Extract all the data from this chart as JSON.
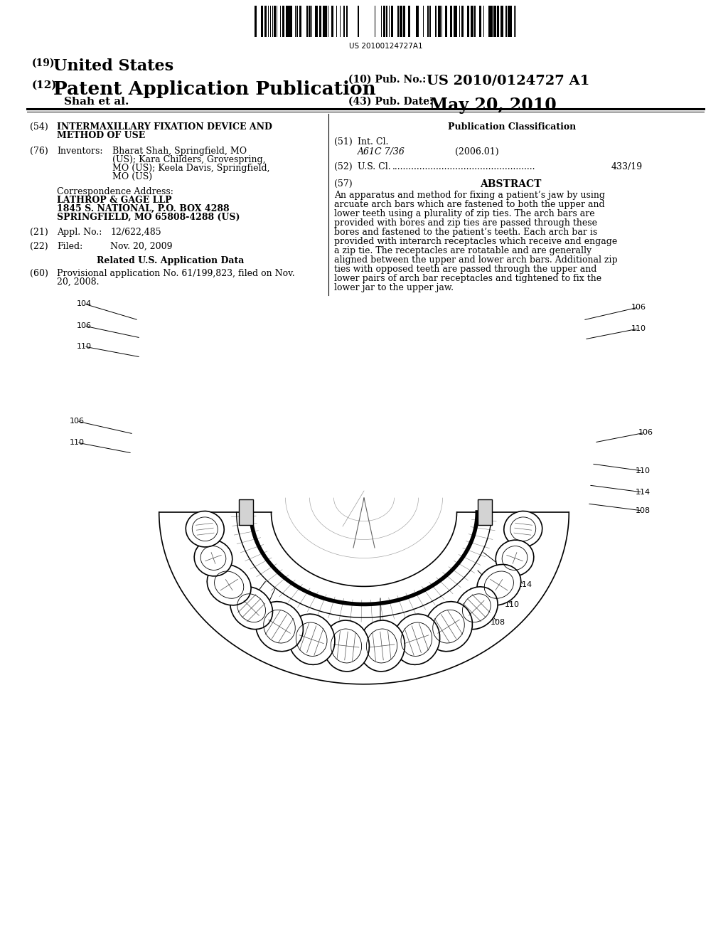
{
  "bg_color": "#ffffff",
  "barcode_text": "US 20100124727A1",
  "pub_no_label": "(10) Pub. No.:",
  "pub_no_value": "US 2010/0124727 A1",
  "author": "Shah et al.",
  "pub_date_label": "(43) Pub. Date:",
  "pub_date_value": "May 20, 2010",
  "field_54_line1": "INTERMAXILLARY FIXATION DEVICE AND",
  "field_54_line2": "METHOD OF USE",
  "field_76_line1": "Bharat Shah, Springfield, MO",
  "field_76_line2": "(US); Kara Childers, Grovespring,",
  "field_76_line3": "MO (US); Keela Davis, Springfield,",
  "field_76_line4": "MO (US)",
  "corr_label": "Correspondence Address:",
  "corr_line1": "LATHROP & GAGE LLP",
  "corr_line2": "1845 S. NATIONAL, P.O. BOX 4288",
  "corr_line3": "SPRINGFIELD, MO 65808-4288 (US)",
  "field_21_value": "12/622,485",
  "field_22_value": "Nov. 20, 2009",
  "related_title": "Related U.S. Application Data",
  "field_60_line1": "Provisional application No. 61/199,823, filed on Nov.",
  "field_60_line2": "20, 2008.",
  "pub_class_title": "Publication Classification",
  "field_51_class": "A61C 7/36",
  "field_51_year": "(2006.01)",
  "field_52_value": "433/19",
  "field_57_title": "ABSTRACT",
  "abstract_lines": [
    "An apparatus and method for fixing a patient’s jaw by using",
    "arcuate arch bars which are fastened to both the upper and",
    "lower teeth using a plurality of zip ties. The arch bars are",
    "provided with bores and zip ties are passed through these",
    "bores and fastened to the patient’s teeth. Each arch bar is",
    "provided with interarch receptacles which receive and engage",
    "a zip tie. The receptacles are rotatable and are generally",
    "aligned between the upper and lower arch bars. Additional zip",
    "ties with opposed teeth are passed through the upper and",
    "lower pairs of arch bar receptacles and tightened to fix the",
    "lower jar to the upper jaw."
  ]
}
